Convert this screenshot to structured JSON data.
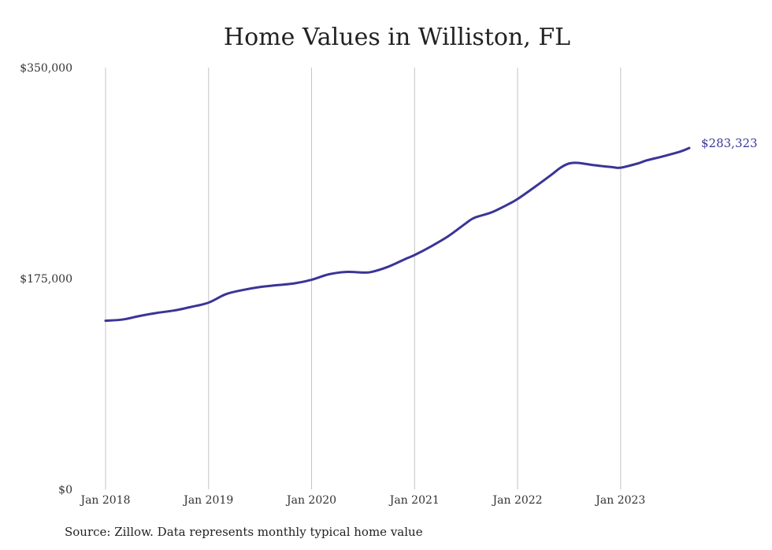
{
  "chart_data": {
    "type": "line",
    "title": "Home Values in Williston, FL",
    "source": "Source: Zillow. Data represents monthly typical home value",
    "xlabel": "",
    "ylabel": "",
    "ylim": [
      0,
      350000
    ],
    "xlim": [
      "2018-01",
      "2023-09"
    ],
    "y_ticks": [
      {
        "value": 0,
        "label": "$0"
      },
      {
        "value": 175000,
        "label": "$175,000"
      },
      {
        "value": 350000,
        "label": "$350,000"
      }
    ],
    "x_ticks": [
      {
        "value": "2018-01",
        "label": "Jan 2018"
      },
      {
        "value": "2019-01",
        "label": "Jan 2019"
      },
      {
        "value": "2020-01",
        "label": "Jan 2020"
      },
      {
        "value": "2021-01",
        "label": "Jan 2021"
      },
      {
        "value": "2022-01",
        "label": "Jan 2022"
      },
      {
        "value": "2023-01",
        "label": "Jan 2023"
      }
    ],
    "grid": "vertical",
    "end_label": "$283,323",
    "line_color": "#3a3596",
    "series": [
      {
        "points": [
          {
            "x": "2018-01",
            "y": 140000
          },
          {
            "x": "2018-03",
            "y": 141000
          },
          {
            "x": "2018-05",
            "y": 144000
          },
          {
            "x": "2018-07",
            "y": 146500
          },
          {
            "x": "2018-09",
            "y": 148500
          },
          {
            "x": "2018-11",
            "y": 151500
          },
          {
            "x": "2019-01",
            "y": 155000
          },
          {
            "x": "2019-03",
            "y": 162000
          },
          {
            "x": "2019-05",
            "y": 165500
          },
          {
            "x": "2019-07",
            "y": 168000
          },
          {
            "x": "2019-09",
            "y": 169500
          },
          {
            "x": "2019-11",
            "y": 171000
          },
          {
            "x": "2020-01",
            "y": 174000
          },
          {
            "x": "2020-03",
            "y": 178500
          },
          {
            "x": "2020-05",
            "y": 180500
          },
          {
            "x": "2020-07",
            "y": 180000
          },
          {
            "x": "2020-08",
            "y": 180500
          },
          {
            "x": "2020-10",
            "y": 185000
          },
          {
            "x": "2020-12",
            "y": 191500
          },
          {
            "x": "2021-01",
            "y": 194500
          },
          {
            "x": "2021-03",
            "y": 202000
          },
          {
            "x": "2021-05",
            "y": 210500
          },
          {
            "x": "2021-07",
            "y": 221000
          },
          {
            "x": "2021-08",
            "y": 225500
          },
          {
            "x": "2021-10",
            "y": 230000
          },
          {
            "x": "2021-12",
            "y": 237000
          },
          {
            "x": "2022-01",
            "y": 241000
          },
          {
            "x": "2022-03",
            "y": 251000
          },
          {
            "x": "2022-05",
            "y": 261500
          },
          {
            "x": "2022-06",
            "y": 267000
          },
          {
            "x": "2022-07",
            "y": 270500
          },
          {
            "x": "2022-08",
            "y": 271000
          },
          {
            "x": "2022-10",
            "y": 269000
          },
          {
            "x": "2022-12",
            "y": 267500
          },
          {
            "x": "2023-01",
            "y": 267000
          },
          {
            "x": "2023-03",
            "y": 270500
          },
          {
            "x": "2023-04",
            "y": 273000
          },
          {
            "x": "2023-06",
            "y": 276500
          },
          {
            "x": "2023-08",
            "y": 280500
          },
          {
            "x": "2023-09",
            "y": 283323
          }
        ]
      }
    ]
  }
}
